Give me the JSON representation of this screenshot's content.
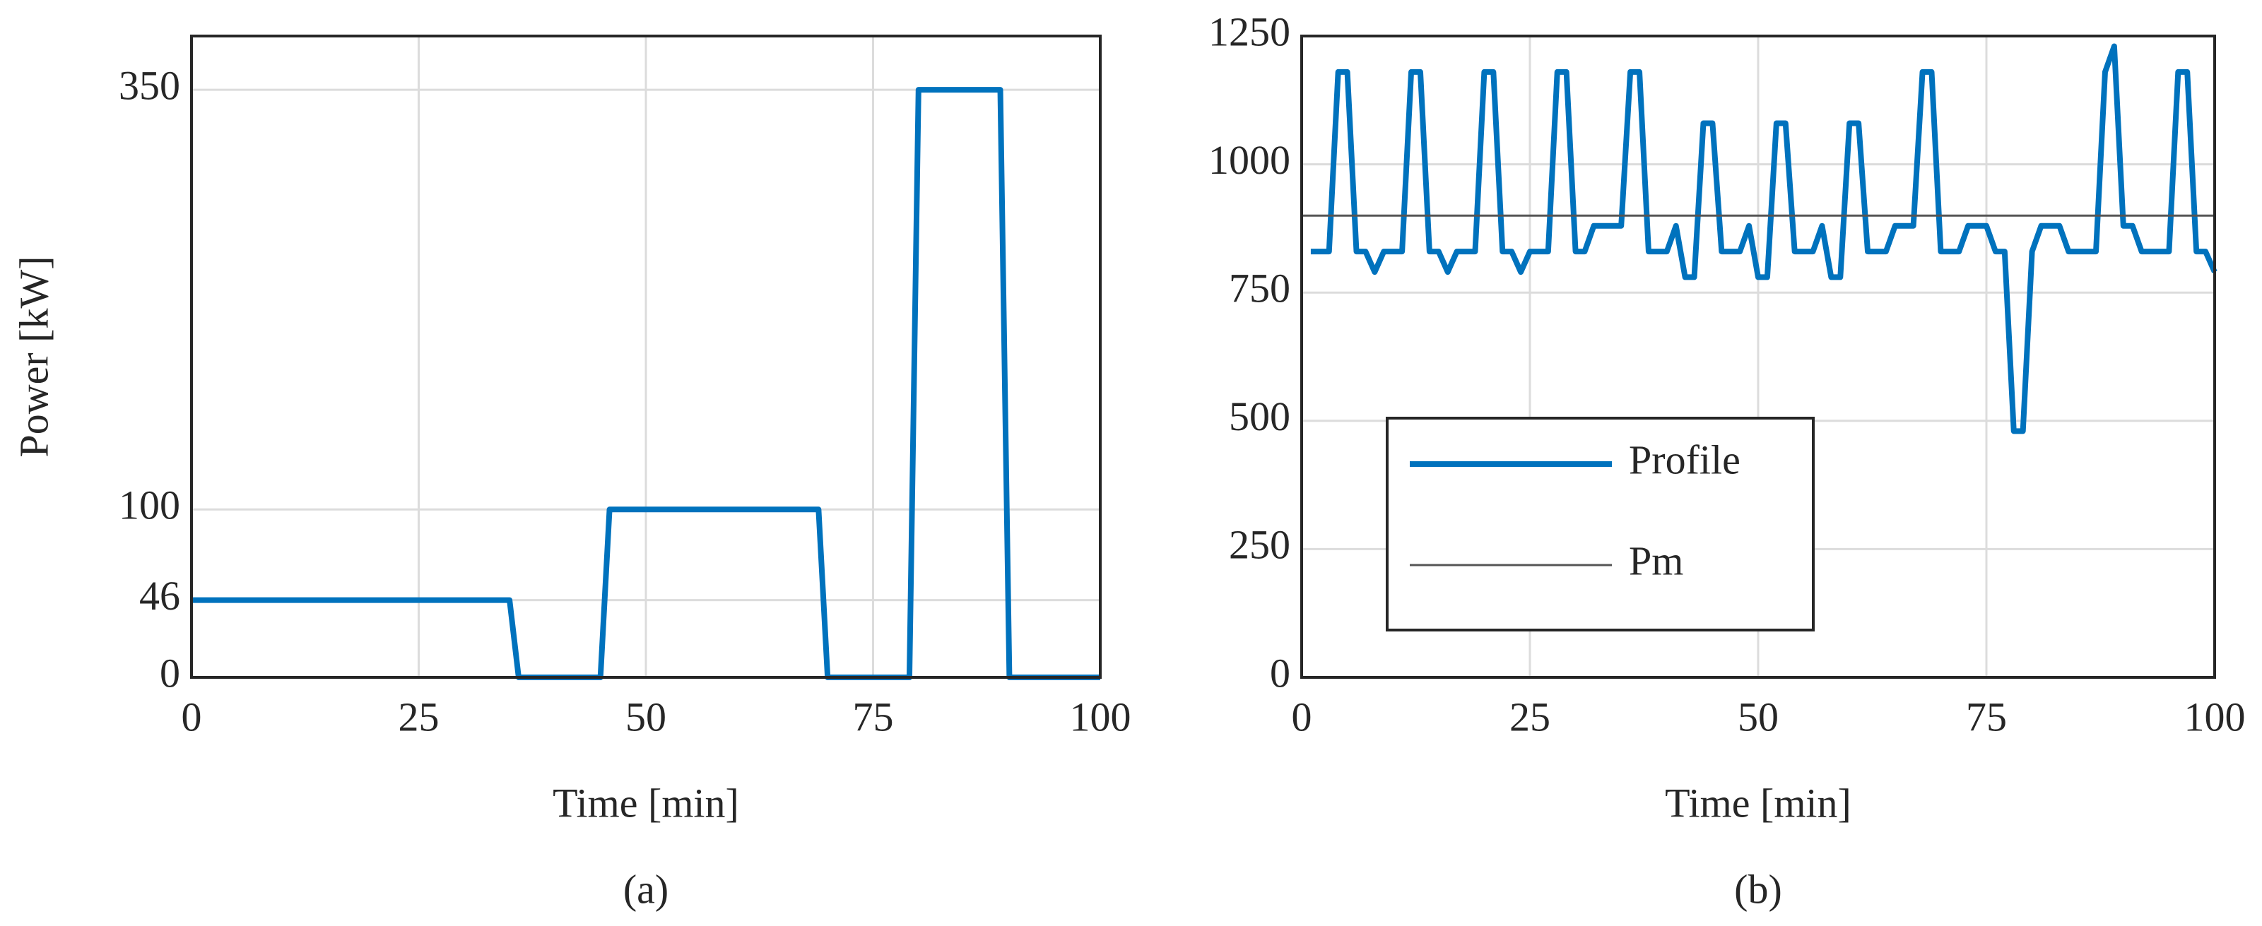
{
  "chart_data": [
    {
      "type": "line",
      "caption": "(a)",
      "xlabel": "Time [min]",
      "ylabel": "Power [kW]",
      "xlim": [
        0,
        100
      ],
      "xticks": [
        0,
        25,
        50,
        75,
        100
      ],
      "ylim": [
        0,
        382
      ],
      "yticks": [
        0,
        46,
        100,
        350
      ],
      "grid": true,
      "series": [
        {
          "color": "#0072bd",
          "x": [
            0,
            35,
            36,
            45,
            46,
            69,
            70,
            79,
            80,
            89,
            90,
            100
          ],
          "values": [
            46,
            46,
            0,
            0,
            100,
            100,
            0,
            0,
            350,
            350,
            0,
            0
          ]
        }
      ]
    },
    {
      "type": "line",
      "caption": "(b)",
      "xlabel": "Time [min]",
      "xlim": [
        0,
        100
      ],
      "xticks": [
        0,
        25,
        50,
        75,
        100
      ],
      "ylim": [
        0,
        1250
      ],
      "yticks": [
        0,
        250,
        500,
        750,
        1000,
        1250
      ],
      "grid": true,
      "legend": "lower left",
      "series": [
        {
          "name": "Profile",
          "color": "#0072bd",
          "x": [
            1,
            3,
            4,
            5,
            6,
            7,
            8,
            9,
            11,
            12,
            13,
            14,
            15,
            16,
            17,
            19,
            20,
            21,
            22,
            23,
            24,
            25,
            27,
            28,
            29,
            30,
            31,
            32,
            35,
            36,
            37,
            38,
            40,
            41,
            42,
            43,
            44,
            45,
            46,
            48,
            49,
            50,
            51,
            52,
            53,
            54,
            56,
            57,
            58,
            59,
            60,
            61,
            62,
            64,
            65,
            67,
            68,
            69,
            70,
            72,
            73,
            75,
            76,
            77,
            78,
            79,
            80,
            81,
            83,
            84,
            87,
            88,
            89,
            90,
            91,
            92,
            95,
            96,
            97,
            98,
            99,
            100
          ],
          "values": [
            830,
            830,
            1180,
            1180,
            830,
            830,
            790,
            830,
            830,
            1180,
            1180,
            830,
            830,
            790,
            830,
            830,
            1180,
            1180,
            830,
            830,
            790,
            830,
            830,
            1180,
            1180,
            830,
            830,
            880,
            880,
            1180,
            1180,
            830,
            830,
            880,
            780,
            780,
            1080,
            1080,
            830,
            830,
            880,
            780,
            780,
            1080,
            1080,
            830,
            830,
            880,
            780,
            780,
            1080,
            1080,
            830,
            830,
            880,
            880,
            1180,
            1180,
            830,
            830,
            880,
            880,
            830,
            830,
            480,
            480,
            830,
            880,
            880,
            830,
            830,
            1180,
            1230,
            880,
            880,
            830,
            830,
            1180,
            1180,
            830,
            830,
            790
          ]
        },
        {
          "name": "Pm",
          "color": "#555555",
          "x": [
            0,
            100
          ],
          "values": [
            900,
            900
          ]
        }
      ]
    }
  ]
}
